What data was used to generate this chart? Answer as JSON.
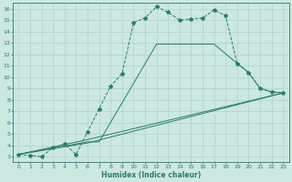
{
  "xlabel": "Humidex (Indice chaleur)",
  "bg_color": "#cce8e0",
  "line_color": "#2d7a6a",
  "grid_color": "#aad4cc",
  "xlim": [
    -0.5,
    23.5
  ],
  "ylim": [
    2.5,
    16.5
  ],
  "xticks": [
    0,
    1,
    2,
    3,
    4,
    5,
    6,
    7,
    8,
    9,
    10,
    11,
    12,
    13,
    14,
    15,
    16,
    17,
    18,
    19,
    20,
    21,
    22,
    23
  ],
  "yticks": [
    3,
    4,
    5,
    6,
    7,
    8,
    9,
    10,
    11,
    12,
    13,
    14,
    15,
    16
  ],
  "main_line": {
    "x": [
      0,
      1,
      2,
      3,
      4,
      5,
      6,
      7,
      8,
      9,
      10,
      11,
      12,
      13,
      14,
      15,
      16,
      17,
      18,
      19,
      20,
      21,
      22,
      23
    ],
    "y": [
      3.2,
      3.1,
      3.0,
      3.8,
      4.1,
      3.2,
      5.2,
      7.2,
      9.2,
      10.3,
      14.8,
      15.2,
      16.2,
      15.7,
      15.0,
      15.1,
      15.2,
      15.9,
      15.4,
      11.2,
      10.4,
      9.0,
      8.7,
      8.6
    ]
  },
  "fan_lines": [
    {
      "x": [
        0,
        6,
        23
      ],
      "y": [
        3.2,
        4.2,
        8.6
      ]
    },
    {
      "x": [
        0,
        6,
        23
      ],
      "y": [
        3.2,
        4.5,
        8.6
      ]
    },
    {
      "x": [
        0,
        6,
        7,
        12,
        17,
        19,
        20,
        21,
        22,
        23
      ],
      "y": [
        3.2,
        4.3,
        4.3,
        12.9,
        12.9,
        11.2,
        10.4,
        9.0,
        8.7,
        8.6
      ]
    }
  ]
}
